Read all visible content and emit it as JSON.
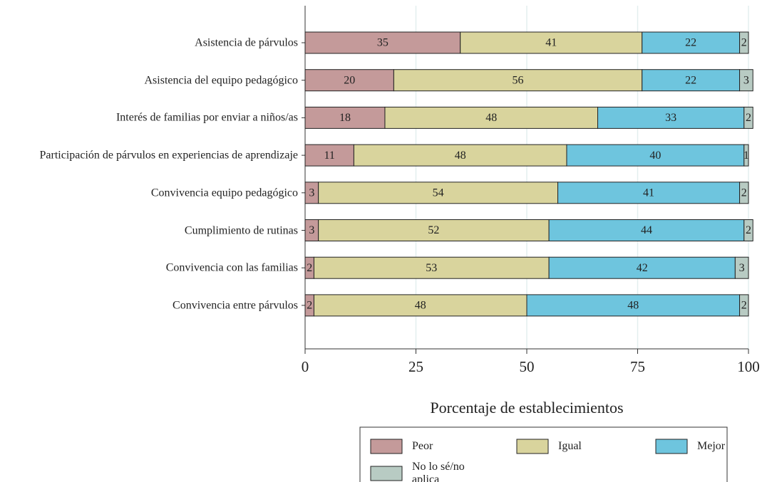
{
  "chart_data": {
    "type": "stacked_barh",
    "categories": [
      "Asistencia de párvulos",
      "Asistencia del equipo pedagógico",
      "Interés de familias por enviar a niños/as",
      "Participación de párvulos en experiencias de aprendizaje",
      "Convivencia equipo pedagógico",
      "Cumplimiento de rutinas",
      "Convivencia con las familias",
      "Convivencia entre párvulos"
    ],
    "series": [
      {
        "name": "Peor",
        "color": "#c49a9a",
        "values": [
          35,
          20,
          18,
          11,
          3,
          3,
          2,
          2
        ]
      },
      {
        "name": "Igual",
        "color": "#d9d49d",
        "values": [
          41,
          56,
          48,
          48,
          54,
          52,
          53,
          48
        ]
      },
      {
        "name": "Mejor",
        "color": "#6ec5de",
        "values": [
          22,
          22,
          33,
          40,
          41,
          44,
          42,
          48
        ]
      },
      {
        "name": "No lo sé/no aplica",
        "color": "#b8cbc3",
        "values": [
          2,
          3,
          2,
          1,
          2,
          2,
          3,
          2
        ]
      }
    ],
    "x_label": "Porcentaje de establecimientos",
    "xlim": [
      0,
      100
    ],
    "xticks": [
      0,
      25,
      50,
      75,
      100
    ],
    "grid": true
  }
}
